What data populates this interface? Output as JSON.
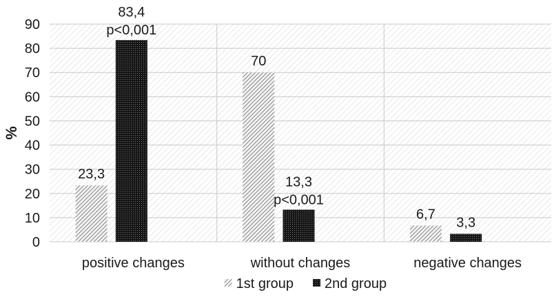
{
  "chart_data": {
    "type": "bar",
    "categories": [
      "positive changes",
      "without changes",
      "negative changes"
    ],
    "series": [
      {
        "name": "1st group",
        "values": [
          23.3,
          70,
          6.7
        ],
        "labels": [
          "23,3",
          "70",
          "6,7"
        ],
        "pattern": "diagonal-hatch",
        "color": "#8a8a8a"
      },
      {
        "name": "2nd group",
        "values": [
          83.4,
          13.3,
          3.3
        ],
        "labels": [
          "83,4",
          "13,3",
          "3,3"
        ],
        "pattern": "dense-dots",
        "color": "#1f1f1f"
      }
    ],
    "annotations": [
      "p<0,001",
      "p<0,001",
      ""
    ],
    "title": "",
    "xlabel": "",
    "ylabel": "%",
    "ylim": [
      0,
      90
    ],
    "yticks": [
      0,
      10,
      20,
      30,
      40,
      50,
      60,
      70,
      80,
      90
    ],
    "grid": true,
    "legend_position": "bottom"
  }
}
